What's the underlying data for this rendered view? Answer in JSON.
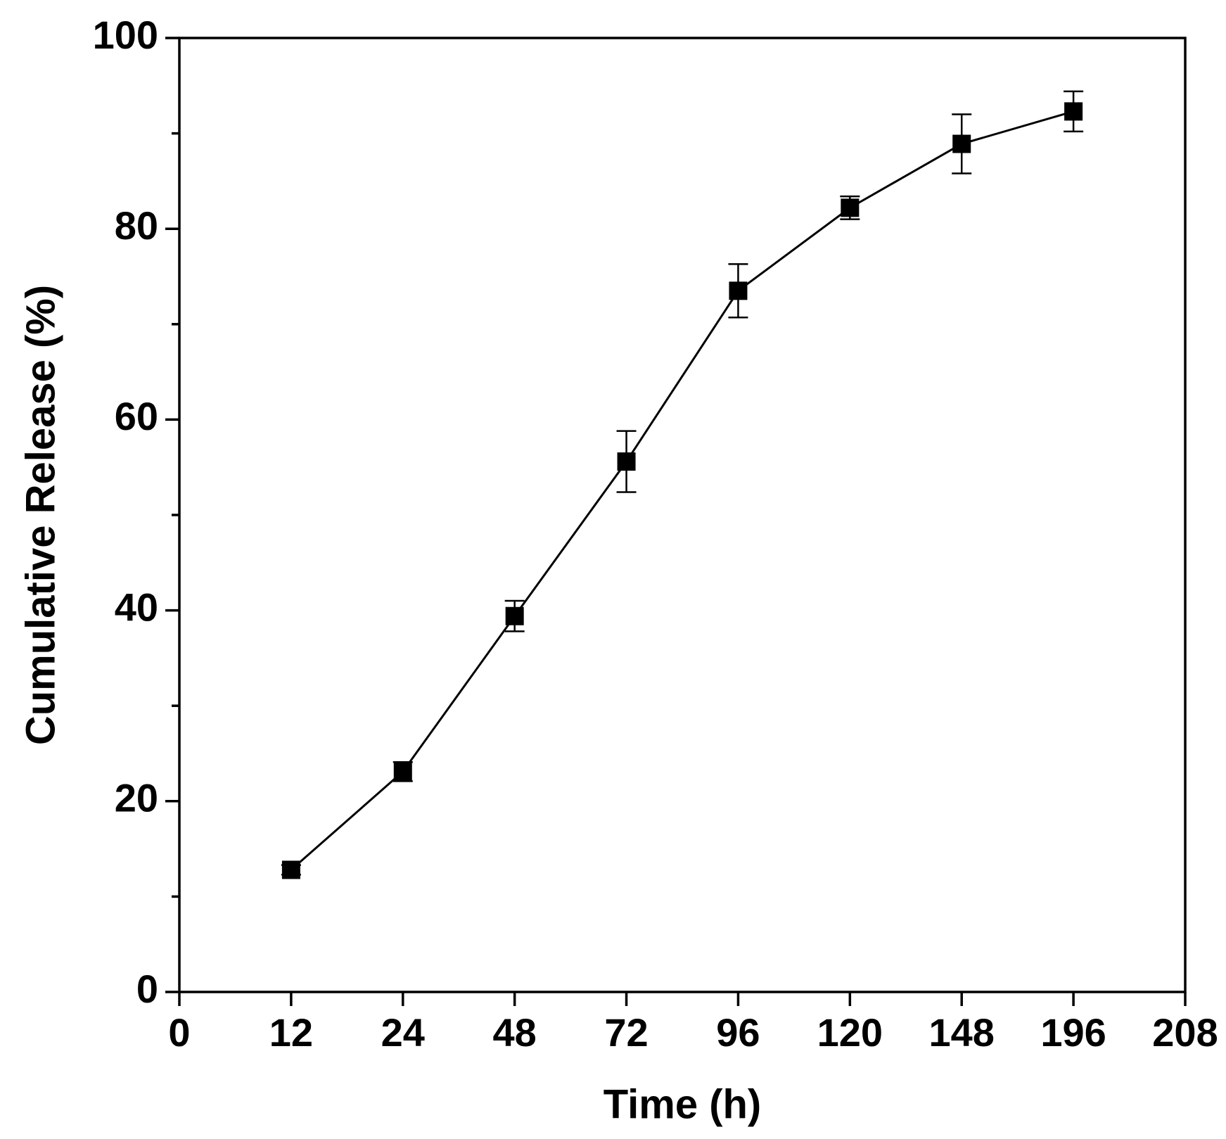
{
  "chart_data": {
    "type": "line",
    "x_label": "Time (h)",
    "y_label": "Cumulative Release (%)",
    "categories": [
      "0",
      "12",
      "24",
      "48",
      "72",
      "96",
      "120",
      "148",
      "196",
      "208"
    ],
    "series": [
      {
        "color": "#000000",
        "values": [
          null,
          12.8,
          23.1,
          39.4,
          55.6,
          73.5,
          82.2,
          88.9,
          92.3,
          null
        ],
        "errors": [
          null,
          0.5,
          1.0,
          1.6,
          3.2,
          2.8,
          1.2,
          3.1,
          2.1,
          null
        ]
      }
    ],
    "ylim": [
      0,
      100
    ],
    "yticks": [
      0,
      20,
      40,
      60,
      80,
      100
    ],
    "yminor_ticks": [
      10,
      30,
      50,
      70,
      90
    ],
    "grid": false
  }
}
